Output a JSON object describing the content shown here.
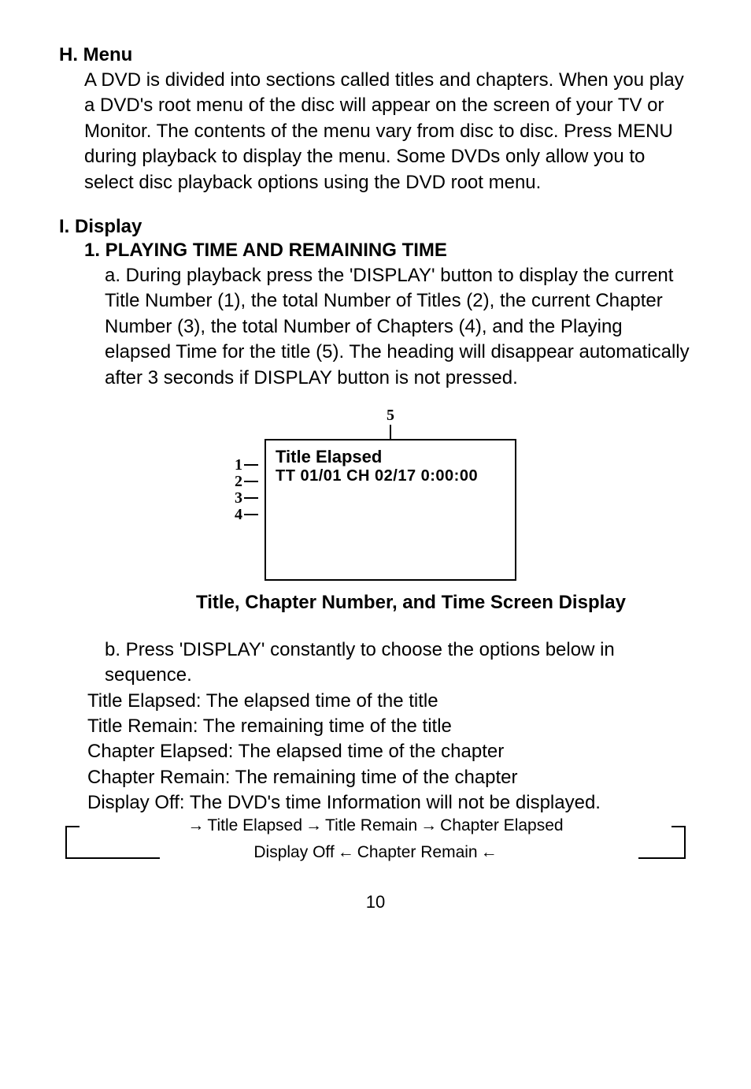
{
  "sections": {
    "h": {
      "heading": "H. Menu",
      "body": "A DVD is divided into sections called titles and chapters. When you play a DVD's  root menu of the disc will appear on the screen of your TV or Monitor. The contents of the menu  vary from disc to disc. Press MENU during playback to display the menu. Some DVDs only allow you to select disc playback options using the DVD root menu."
    },
    "i": {
      "heading": "I. Display",
      "sub1_heading": "1. PLAYING TIME AND REMAINING TIME",
      "a_body": "a. During playback press the 'DISPLAY'  button to display the current  Title Number (1), the total Number of Titles (2), the current Chapter Number (3), the total Number of Chapters (4), and the Playing  elapsed Time for the title (5). The heading will disappear automatically after 3 seconds if DISPLAY button is not pressed.",
      "b_body": "b. Press 'DISPLAY' constantly to choose the options below in sequence."
    }
  },
  "figure": {
    "callout_5": "5",
    "callouts_left": [
      "1",
      "2",
      "3",
      "4"
    ],
    "screen_title": "Title Elapsed",
    "screen_sub": "TT 01/01  CH 02/17  0:00:00",
    "caption": "Title, Chapter Number, and Time Screen Display"
  },
  "definitions": {
    "title_elapsed": "Title Elapsed: The elapsed time of the title",
    "title_remain": "Title Remain: The remaining time of  the title",
    "chapter_elapsed": "Chapter Elapsed: The elapsed time of the chapter",
    "chapter_remain": "Chapter Remain: The remaining time of the chapter",
    "display_off": "Display Off: The DVD's time Information will not be displayed."
  },
  "flow": {
    "n1": "Title Elapsed",
    "n2": "Title Remain",
    "n3": "Chapter Elapsed",
    "n4": "Chapter Remain",
    "n5": "Display Off"
  },
  "page_number": "10",
  "colors": {
    "text": "#000000",
    "bg": "#ffffff",
    "border": "#000000"
  }
}
